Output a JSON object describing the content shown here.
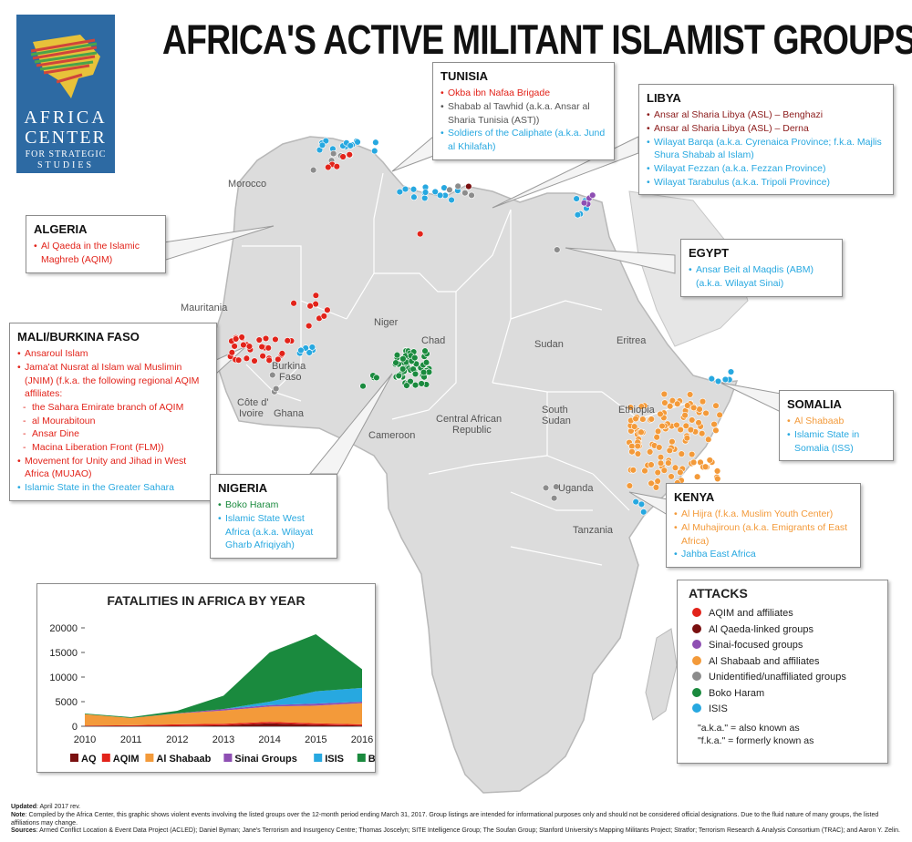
{
  "title": "AFRICA'S ACTIVE MILITANT ISLAMIST GROUPS",
  "logo": {
    "line1": "AFRICA",
    "line2": "CENTER",
    "line3": "FOR STRATEGIC",
    "line4": "STUDIES"
  },
  "countries": {
    "morocco": "Morocco",
    "mauritania": "Mauritania",
    "niger": "Niger",
    "chad": "Chad",
    "sudan": "Sudan",
    "eritrea": "Eritrea",
    "burkina": "Burkina",
    "faso": "Faso",
    "cote": "Côte d'",
    "ivoire": "Ivoire",
    "ghana": "Ghana",
    "cameroon": "Cameroon",
    "car1": "Central African",
    "car2": "Republic",
    "ssudan1": "South",
    "ssudan2": "Sudan",
    "ethiopia": "Ethiopia",
    "uganda": "Uganda",
    "tanzania": "Tanzania"
  },
  "callouts": {
    "tunisia": {
      "title": "TUNISIA",
      "items": [
        {
          "text": "Okba ibn Nafaa Brigade",
          "color": "#e2231a"
        },
        {
          "text": "Shabab al Tawhid (a.k.a. Ansar al Sharia Tunisia (AST))",
          "color": "#555555"
        },
        {
          "text": "Soldiers of the Caliphate (a.k.a. Jund al Khilafah)",
          "color": "#27a8e0"
        }
      ]
    },
    "libya": {
      "title": "LIBYA",
      "items": [
        {
          "text": "Ansar al Sharia Libya (ASL) – Benghazi",
          "color": "#8b1a1a"
        },
        {
          "text": "Ansar al Sharia Libya (ASL) – Derna",
          "color": "#8b1a1a"
        },
        {
          "text": "Wilayat Barqa (a.k.a. Cyrenaica Province; f.k.a. Majlis Shura Shabab al Islam)",
          "color": "#27a8e0"
        },
        {
          "text": "Wilayat Fezzan (a.k.a. Fezzan Province)",
          "color": "#27a8e0"
        },
        {
          "text": "Wilayat Tarabulus (a.k.a. Tripoli Province)",
          "color": "#27a8e0"
        }
      ]
    },
    "algeria": {
      "title": "ALGERIA",
      "items": [
        {
          "text": "Al Qaeda in the Islamic Maghreb (AQIM)",
          "color": "#e2231a"
        }
      ]
    },
    "egypt": {
      "title": "EGYPT",
      "items": [
        {
          "text": "Ansar Beit al Maqdis (ABM) (a.k.a. Wilayat Sinai)",
          "color": "#27a8e0"
        }
      ]
    },
    "mali": {
      "title": "MALI/BURKINA FASO",
      "items": [
        {
          "text": "Ansaroul Islam",
          "color": "#e2231a",
          "sub": false
        },
        {
          "text": "Jama'at Nusrat al Islam wal Muslimin (JNIM) (f.k.a. the following regional AQIM affiliates:",
          "color": "#e2231a",
          "sub": false
        },
        {
          "text": "the Sahara Emirate branch of AQIM",
          "color": "#e2231a",
          "sub": true
        },
        {
          "text": "al Mourabitoun",
          "color": "#e2231a",
          "sub": true
        },
        {
          "text": "Ansar Dine",
          "color": "#e2231a",
          "sub": true
        },
        {
          "text": "Macina Liberation Front (FLM))",
          "color": "#e2231a",
          "sub": true
        },
        {
          "text": "Movement for Unity and Jihad in West Africa (MUJAO)",
          "color": "#e2231a",
          "sub": false
        },
        {
          "text": "Islamic State in the Greater Sahara",
          "color": "#27a8e0",
          "sub": false
        }
      ]
    },
    "nigeria": {
      "title": "NIGERIA",
      "items": [
        {
          "text": "Boko Haram",
          "color": "#1a8a3e"
        },
        {
          "text": "Islamic State West Africa (a.k.a. Wilayat Gharb Afriqiyah)",
          "color": "#27a8e0"
        }
      ]
    },
    "somalia": {
      "title": "SOMALIA",
      "items": [
        {
          "text": "Al Shabaab",
          "color": "#f39a3a"
        },
        {
          "text": "Islamic State in Somalia (ISS)",
          "color": "#27a8e0"
        }
      ]
    },
    "kenya": {
      "title": "KENYA",
      "items": [
        {
          "text": "Al Hijra (f.k.a. Muslim Youth Center)",
          "color": "#f39a3a"
        },
        {
          "text": "Al Muhajiroun (a.k.a. Emigrants of East Africa)",
          "color": "#f39a3a"
        },
        {
          "text": "Jahba East Africa",
          "color": "#27a8e0"
        }
      ]
    }
  },
  "legend": {
    "title": "ATTACKS",
    "items": [
      {
        "label": "AQIM and affiliates",
        "color": "#e2231a"
      },
      {
        "label": "Al Qaeda-linked groups",
        "color": "#7a1010"
      },
      {
        "label": "Sinai-focused groups",
        "color": "#8e4fb3"
      },
      {
        "label": "Al Shabaab and affiliates",
        "color": "#f39a3a"
      },
      {
        "label": "Unidentified/unaffiliated groups",
        "color": "#8c8c8c"
      },
      {
        "label": "Boko Haram",
        "color": "#1a8a3e"
      },
      {
        "label": "ISIS",
        "color": "#27a8e0"
      }
    ],
    "aka1": "\"a.k.a.\" = also known as",
    "aka2": "\"f.k.a.\" = formerly known as"
  },
  "chart_data": {
    "type": "area",
    "title": "FATALITIES IN AFRICA BY YEAR",
    "x": [
      2010,
      2011,
      2012,
      2013,
      2014,
      2015,
      2016
    ],
    "ylim": [
      0,
      20000
    ],
    "yticks": [
      0,
      5000,
      10000,
      15000,
      20000
    ],
    "stacked": true,
    "series": [
      {
        "name": "AQ",
        "color": "#7a1010",
        "values": [
          50,
          50,
          100,
          200,
          600,
          300,
          150
        ]
      },
      {
        "name": "AQIM",
        "color": "#e2231a",
        "values": [
          100,
          150,
          300,
          300,
          300,
          300,
          250
        ]
      },
      {
        "name": "Al Shabaab",
        "color": "#f39a3a",
        "values": [
          2300,
          1500,
          2200,
          2700,
          3100,
          3600,
          4300
        ]
      },
      {
        "name": "Sinai Groups",
        "color": "#8e4fb3",
        "values": [
          0,
          0,
          50,
          300,
          300,
          400,
          300
        ]
      },
      {
        "name": "ISIS",
        "color": "#27a8e0",
        "values": [
          0,
          0,
          0,
          0,
          700,
          2500,
          2800
        ]
      },
      {
        "name": "BH",
        "color": "#1a8a3e",
        "values": [
          150,
          150,
          500,
          2700,
          10000,
          11600,
          3800
        ]
      }
    ]
  },
  "footer": {
    "updated_label": "Updated",
    "updated": ": April 2017 rev.",
    "note_label": "Note",
    "note": ": Compiled by the Africa Center, this graphic shows violent events involving the listed groups over the 12-month period ending March 31, 2017. Group listings are intended for informational purposes only and should not be considered official designations. Due to the fluid nature of many groups, the listed affiliations may change.",
    "sources_label": "Sources",
    "sources": ": Armed Conflict Location & Event Data Project (ACLED); Daniel Byman; Jane's Terrorism and Insurgency Centre; Thomas Joscelyn; SITE Intelligence Group; The Soufan Group; Stanford University's Mapping Militants Project; Stratfor; Terrorism Research & Analysis Consortium (TRAC); and Aaron Y. Zelin."
  }
}
